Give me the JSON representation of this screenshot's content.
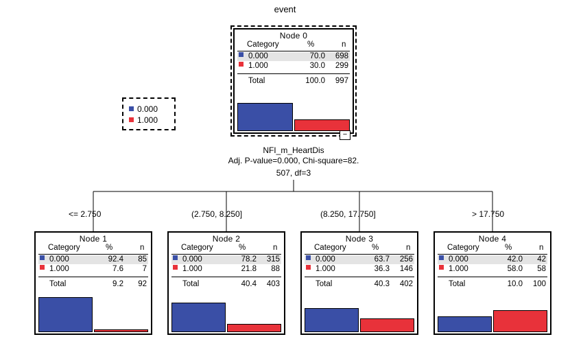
{
  "title": "event",
  "colors": {
    "class0": "#3a4fa6",
    "class1": "#e8323a"
  },
  "legend": [
    {
      "label": "0.000",
      "color": "#3a4fa6"
    },
    {
      "label": "1.000",
      "color": "#e8323a"
    }
  ],
  "table_headers": {
    "category": "Category",
    "percent": "%",
    "n": "n"
  },
  "total_label": "Total",
  "split": {
    "variable": "NFI_m_HeartDis",
    "stats_line1": "Adj. P-value=0.000, Chi-square=82.",
    "stats_line2": "507, df=3"
  },
  "root": {
    "name": "Node 0",
    "rows": [
      {
        "category": "0.000",
        "percent": "70.0",
        "n": "698"
      },
      {
        "category": "1.000",
        "percent": "30.0",
        "n": "299"
      }
    ],
    "total": {
      "percent": "100.0",
      "n": "997"
    },
    "bar_values": [
      0.7,
      0.3
    ]
  },
  "children": [
    {
      "edge": "<= 2.750",
      "name": "Node 1",
      "rows": [
        {
          "category": "0.000",
          "percent": "92.4",
          "n": "85"
        },
        {
          "category": "1.000",
          "percent": "7.6",
          "n": "7"
        }
      ],
      "total": {
        "percent": "9.2",
        "n": "92"
      },
      "bar_values": [
        0.924,
        0.076
      ]
    },
    {
      "edge": "(2.750, 8.250]",
      "name": "Node 2",
      "rows": [
        {
          "category": "0.000",
          "percent": "78.2",
          "n": "315"
        },
        {
          "category": "1.000",
          "percent": "21.8",
          "n": "88"
        }
      ],
      "total": {
        "percent": "40.4",
        "n": "403"
      },
      "bar_values": [
        0.782,
        0.218
      ]
    },
    {
      "edge": "(8.250, 17.750]",
      "name": "Node 3",
      "rows": [
        {
          "category": "0.000",
          "percent": "63.7",
          "n": "256"
        },
        {
          "category": "1.000",
          "percent": "36.3",
          "n": "146"
        }
      ],
      "total": {
        "percent": "40.3",
        "n": "402"
      },
      "bar_values": [
        0.637,
        0.363
      ]
    },
    {
      "edge": "> 17.750",
      "name": "Node 4",
      "rows": [
        {
          "category": "0.000",
          "percent": "42.0",
          "n": "42"
        },
        {
          "category": "1.000",
          "percent": "58.0",
          "n": "58"
        }
      ],
      "total": {
        "percent": "10.0",
        "n": "100"
      },
      "bar_values": [
        0.42,
        0.58
      ]
    }
  ]
}
